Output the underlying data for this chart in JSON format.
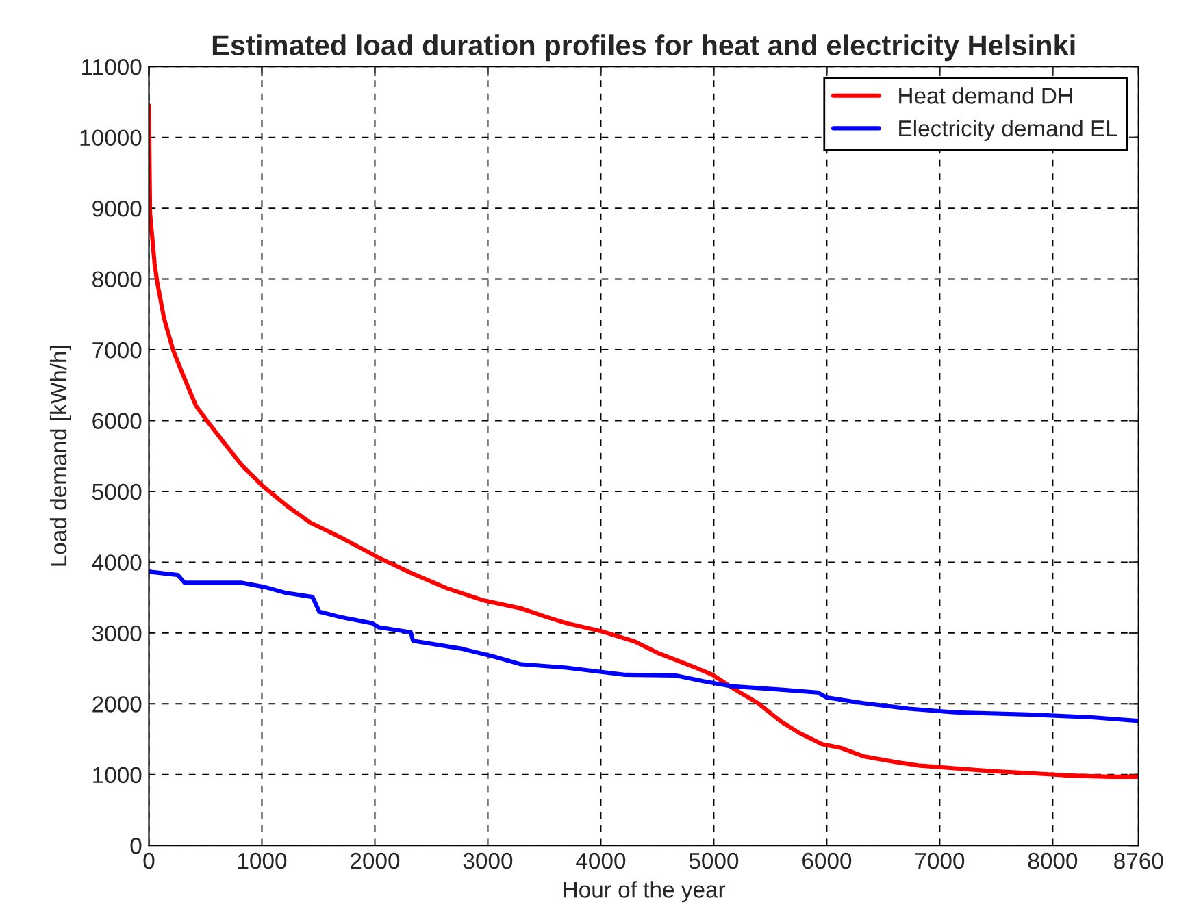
{
  "chart_data": {
    "type": "line",
    "title": "Estimated load duration profiles for heat and electricity Helsinki",
    "xlabel": "Hour of the year",
    "ylabel": "Load demand [kWh/h]",
    "xlim": [
      0,
      8760
    ],
    "xticks": [
      0,
      1000,
      2000,
      3000,
      4000,
      5000,
      6000,
      7000,
      8000,
      8760
    ],
    "ylim": [
      0,
      11000
    ],
    "yticks": [
      0,
      1000,
      2000,
      3000,
      4000,
      5000,
      6000,
      7000,
      8000,
      9000,
      10000,
      11000
    ],
    "grid": true,
    "legend": "top right",
    "line_style": "solid",
    "marker": "none",
    "series": [
      {
        "name": "Heat demand DH",
        "color": "#ff0000",
        "x": [
          0,
          10,
          50,
          73,
          133,
          215,
          295,
          416,
          518,
          659,
          822,
          1004,
          1226,
          1428,
          1711,
          2015,
          2318,
          2642,
          2965,
          3289,
          3532,
          3693,
          4017,
          4300,
          4502,
          4826,
          4988,
          5190,
          5392,
          5595,
          5756,
          5959,
          6120,
          6323,
          6606,
          6808,
          7132,
          7455,
          7819,
          8103,
          8507,
          8760
        ],
        "values": [
          10450,
          8930,
          8220,
          7960,
          7450,
          6990,
          6670,
          6210,
          5990,
          5700,
          5370,
          5080,
          4790,
          4560,
          4340,
          4080,
          3850,
          3630,
          3460,
          3350,
          3220,
          3140,
          3020,
          2880,
          2720,
          2520,
          2410,
          2200,
          2010,
          1750,
          1590,
          1430,
          1380,
          1260,
          1180,
          1130,
          1090,
          1050,
          1020,
          990,
          970,
          970
        ]
      },
      {
        "name": "Electricity demand EL",
        "color": "#0000ff",
        "x": [
          0,
          33,
          255,
          316,
          822,
          1023,
          1205,
          1448,
          1508,
          1711,
          1974,
          2035,
          2318,
          2338,
          2763,
          3046,
          3289,
          3693,
          4219,
          4664,
          4907,
          5150,
          5595,
          5919,
          5999,
          6323,
          6727,
          7132,
          7779,
          8346,
          8750
        ],
        "values": [
          3870,
          3860,
          3820,
          3710,
          3710,
          3650,
          3570,
          3510,
          3300,
          3220,
          3140,
          3080,
          3010,
          2890,
          2780,
          2670,
          2560,
          2510,
          2410,
          2400,
          2320,
          2250,
          2200,
          2160,
          2090,
          2010,
          1930,
          1880,
          1850,
          1810,
          1760
        ]
      }
    ]
  }
}
